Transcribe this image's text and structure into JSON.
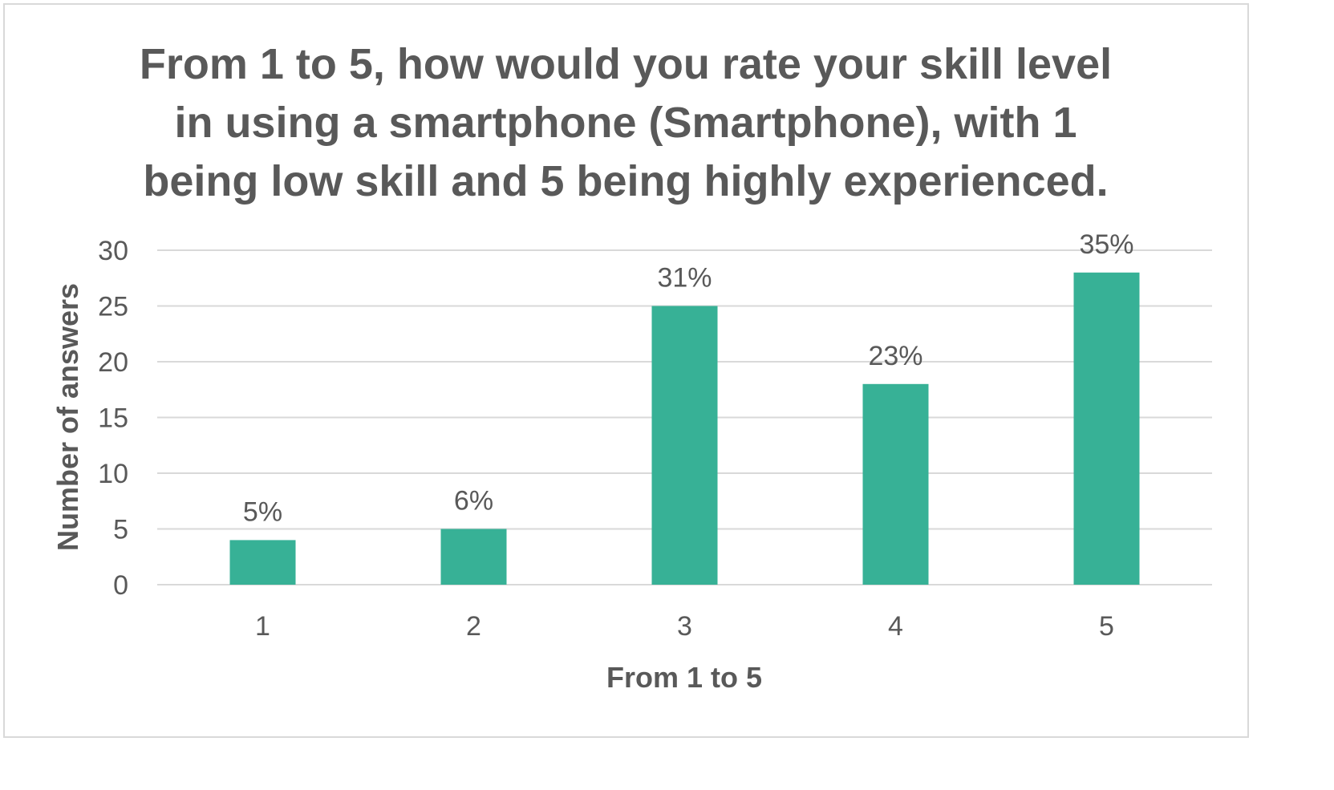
{
  "chart_data": {
    "type": "bar",
    "title": "From 1 to 5, how would you rate your skill level in using a smartphone (Smartphone), with 1 being low skill and 5 being highly experienced.",
    "xlabel": "From 1 to 5",
    "ylabel": "Number of answers",
    "categories": [
      "1",
      "2",
      "3",
      "4",
      "5"
    ],
    "values": [
      4,
      5,
      25,
      18,
      28
    ],
    "data_labels": [
      "5%",
      "6%",
      "31%",
      "23%",
      "35%"
    ],
    "ylim": [
      0,
      30
    ],
    "yticks": [
      "0",
      "5",
      "10",
      "15",
      "20",
      "25",
      "30"
    ],
    "grid": true,
    "legend": "none",
    "colors": {
      "bar": "#37b196",
      "text": "#595959",
      "grid": "#d9d9d9",
      "frame": "#d9d9d9"
    }
  }
}
